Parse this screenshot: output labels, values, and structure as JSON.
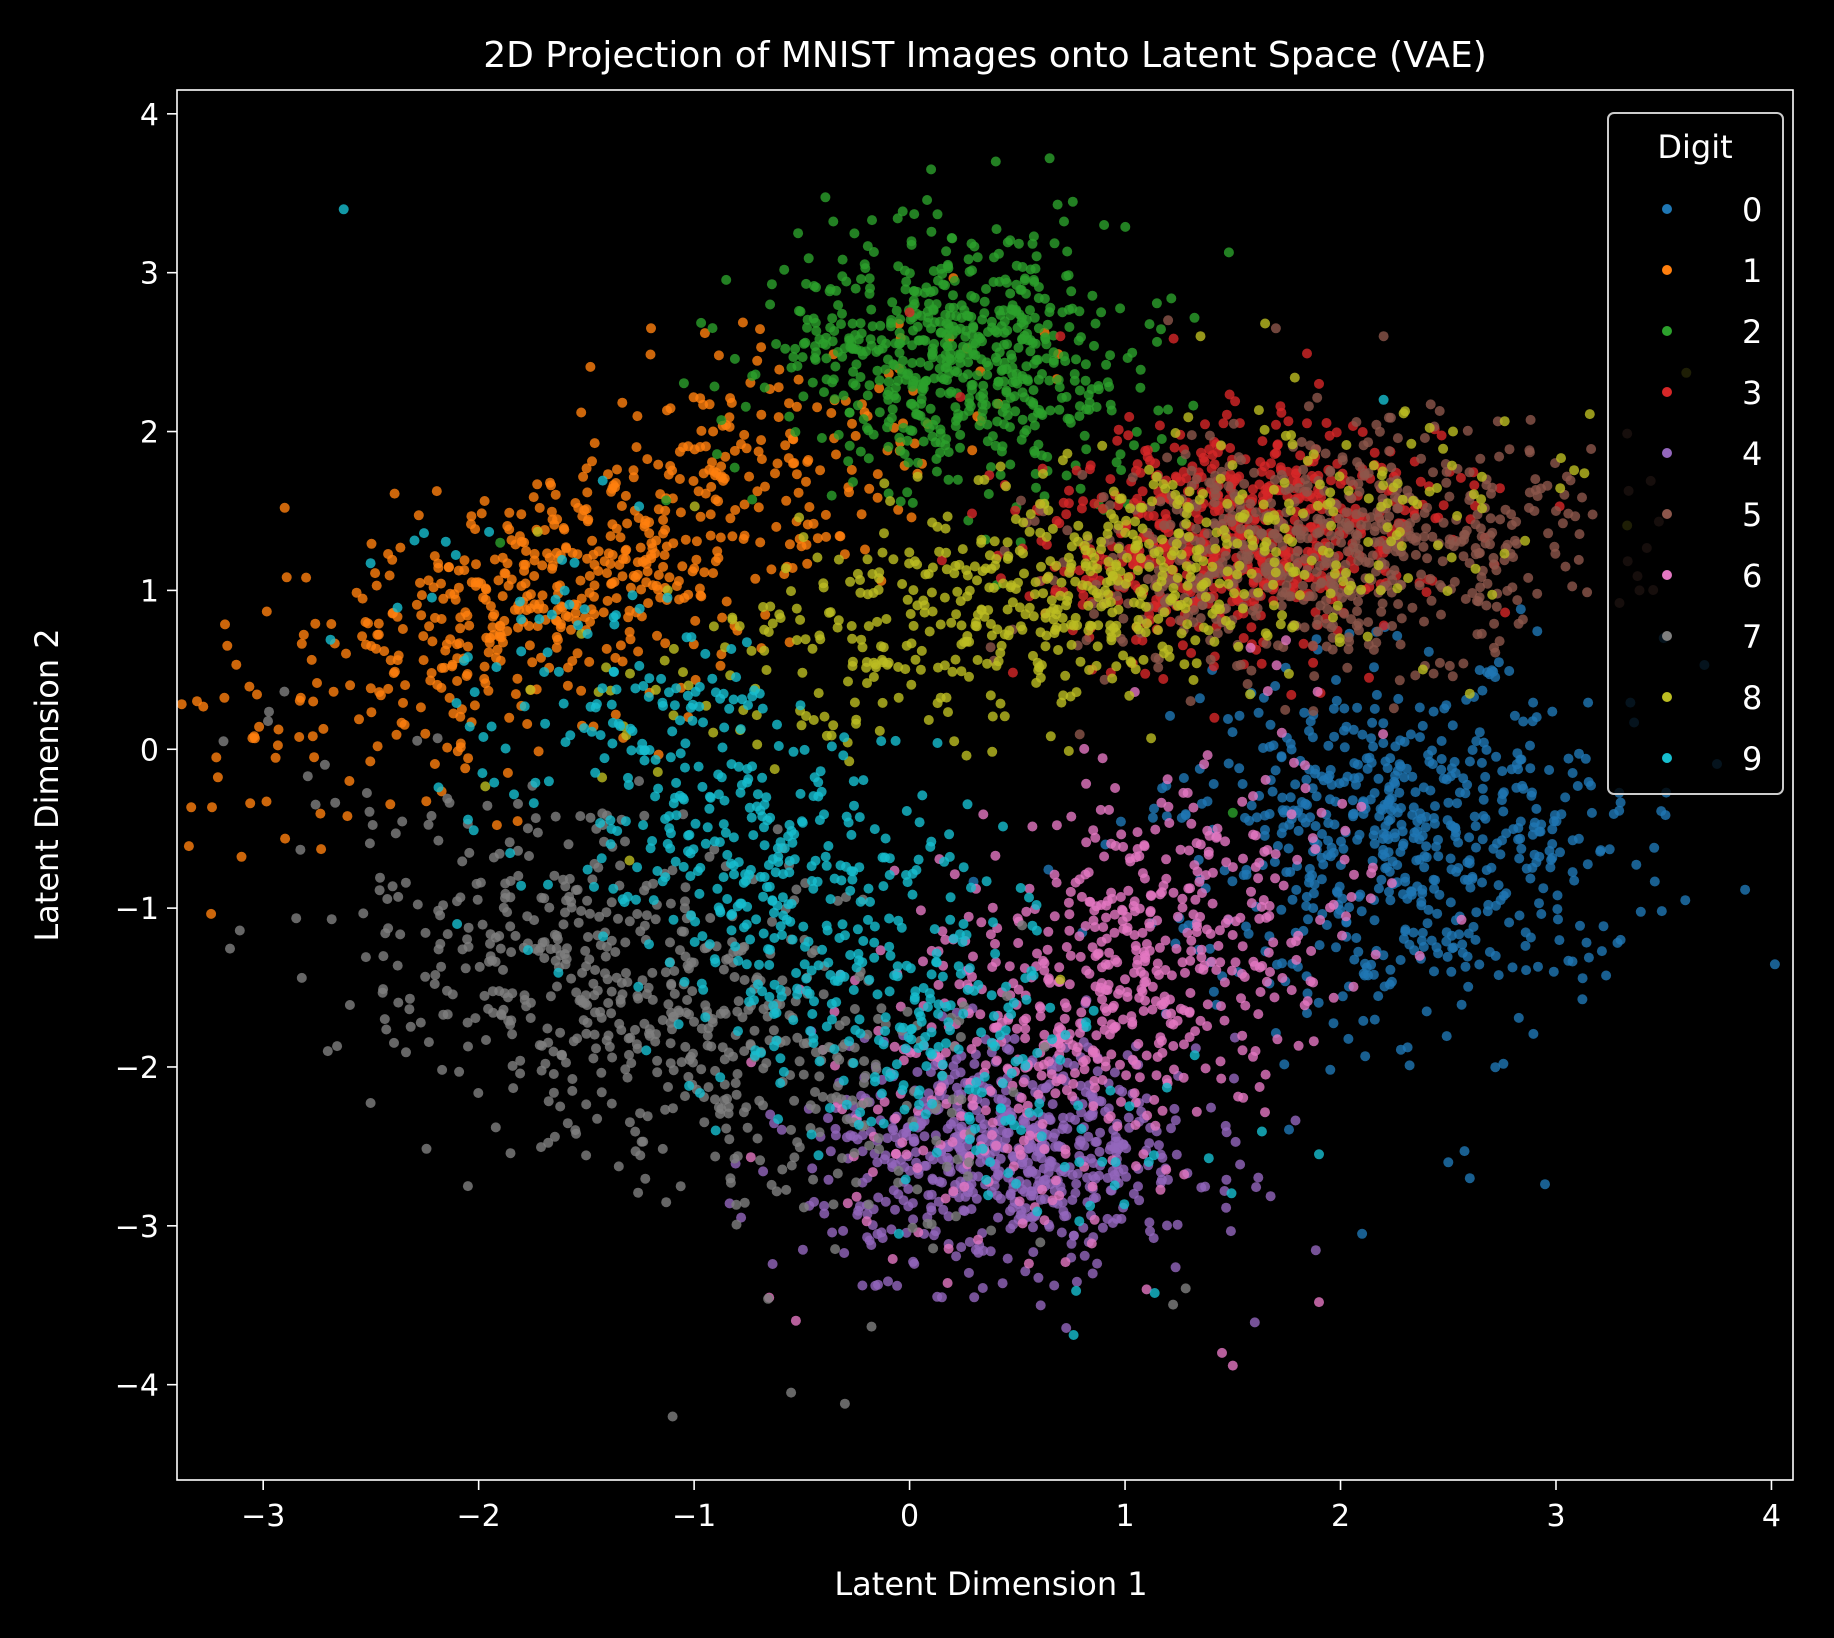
{
  "chart_data": {
    "type": "scatter",
    "title": "2D Projection of MNIST Images onto Latent Space (VAE)",
    "xlabel": "Latent Dimension 1",
    "ylabel": "Latent Dimension 2",
    "xlim": [
      -3.4,
      4.1
    ],
    "ylim": [
      -4.6,
      4.15
    ],
    "xticks": [
      -3,
      -2,
      -1,
      0,
      1,
      2,
      3,
      4
    ],
    "yticks": [
      -4,
      -3,
      -2,
      -1,
      0,
      1,
      2,
      3,
      4
    ],
    "grid": false,
    "legend": {
      "title": "Digit",
      "placement": "top-right"
    },
    "background_color": "#000000",
    "foreground_color": "#ffffff",
    "series": [
      {
        "name": "0",
        "color": "#1f77b4",
        "center": [
          2.3,
          -0.6
        ],
        "spread": [
          0.55,
          0.55
        ],
        "rotation_deg": 25,
        "outliers": [
          [
            3.5,
            0.7
          ],
          [
            3.3,
            -1.2
          ],
          [
            2.5,
            -2.6
          ],
          [
            2.6,
            -2.7
          ],
          [
            2.1,
            -3.05
          ],
          [
            3.6,
            -0.95
          ],
          [
            2.4,
            -1.65
          ]
        ]
      },
      {
        "name": "1",
        "color": "#ff7f0e",
        "center": [
          -1.5,
          1.1
        ],
        "spread": [
          0.95,
          0.35
        ],
        "rotation_deg": 38,
        "outliers": [
          [
            -3.05,
            0.07
          ],
          [
            -2.9,
            1.52
          ],
          [
            -1.2,
            2.65
          ],
          [
            -2.6,
            -0.2
          ],
          [
            -0.95,
            2.62
          ]
        ]
      },
      {
        "name": "2",
        "color": "#2ca02c",
        "center": [
          0.2,
          2.45
        ],
        "spread": [
          0.38,
          0.45
        ],
        "rotation_deg": 70,
        "outliers": [
          [
            0.1,
            3.65
          ],
          [
            0.65,
            3.72
          ],
          [
            0.4,
            3.7
          ],
          [
            -0.25,
            2.9
          ],
          [
            1.5,
            -0.4
          ],
          [
            -1.9,
            1.3
          ]
        ]
      },
      {
        "name": "3",
        "color": "#d62728",
        "center": [
          1.5,
          1.35
        ],
        "spread": [
          0.45,
          0.35
        ],
        "rotation_deg": 20,
        "outliers": [
          [
            0.7,
            2.6
          ],
          [
            1.9,
            2.3
          ],
          [
            0.0,
            2.75
          ],
          [
            1.6,
            0.9
          ]
        ]
      },
      {
        "name": "4",
        "color": "#9467bd",
        "center": [
          0.45,
          -2.55
        ],
        "spread": [
          0.45,
          0.35
        ],
        "rotation_deg": 0,
        "outliers": [
          [
            -0.1,
            -3.35
          ],
          [
            0.3,
            -3.45
          ],
          [
            0.75,
            -3.2
          ],
          [
            0.85,
            -3.3
          ],
          [
            0.15,
            -3.45
          ]
        ]
      },
      {
        "name": "5",
        "color": "#8c564b",
        "center": [
          1.95,
          1.25
        ],
        "spread": [
          0.6,
          0.35
        ],
        "rotation_deg": 10,
        "outliers": [
          [
            2.9,
            1.5
          ],
          [
            3.0,
            1.5
          ],
          [
            2.2,
            2.6
          ],
          [
            1.7,
            2.65
          ],
          [
            1.2,
            2.7
          ]
        ]
      },
      {
        "name": "6",
        "color": "#e377c2",
        "center": [
          0.9,
          -1.5
        ],
        "spread": [
          0.45,
          0.75
        ],
        "rotation_deg": -35,
        "outliers": [
          [
            1.45,
            -3.8
          ],
          [
            1.5,
            -3.88
          ],
          [
            1.9,
            -3.48
          ],
          [
            1.1,
            -3.4
          ]
        ]
      },
      {
        "name": "7",
        "color": "#7f7f7f",
        "center": [
          -1.2,
          -1.65
        ],
        "spread": [
          0.85,
          0.45
        ],
        "rotation_deg": -38,
        "outliers": [
          [
            -1.1,
            -4.2
          ],
          [
            -0.3,
            -4.12
          ],
          [
            -0.55,
            -4.05
          ],
          [
            -2.7,
            -1.9
          ],
          [
            -2.05,
            -2.75
          ]
        ]
      },
      {
        "name": "8",
        "color": "#bcbd22",
        "center": [
          0.75,
          1.0
        ],
        "spread": [
          0.95,
          0.35
        ],
        "rotation_deg": 18,
        "outliers": [
          [
            1.65,
            2.68
          ],
          [
            1.35,
            2.6
          ],
          [
            2.6,
            0.35
          ],
          [
            -1.3,
            -0.7
          ],
          [
            0.7,
            -1.45
          ]
        ]
      },
      {
        "name": "9",
        "color": "#17becf",
        "center": [
          -0.55,
          -0.9
        ],
        "spread": [
          0.4,
          1.1
        ],
        "rotation_deg": 35,
        "outliers": [
          [
            -0.05,
            -3.05
          ],
          [
            2.2,
            2.2
          ],
          [
            -2.1,
            -1.1
          ],
          [
            -0.9,
            -2.4
          ],
          [
            1.9,
            -2.55
          ]
        ]
      }
    ]
  }
}
